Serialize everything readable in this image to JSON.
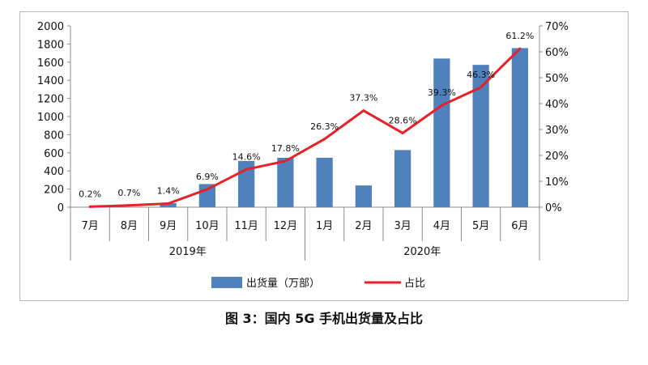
{
  "chart_data": {
    "type": "bar",
    "categories": [
      "7月",
      "8月",
      "9月",
      "10月",
      "11月",
      "12月",
      "1月",
      "2月",
      "3月",
      "4月",
      "5月",
      "6月"
    ],
    "groups": [
      {
        "label": "2019年",
        "start": 0,
        "end": 5
      },
      {
        "label": "2020年",
        "start": 6,
        "end": 11
      }
    ],
    "series": [
      {
        "name": "出货量（万部）",
        "type": "bar",
        "axis": "left",
        "color": "#4f81bd",
        "values": [
          0,
          0,
          45,
          255,
          510,
          545,
          545,
          240,
          630,
          1640,
          1570,
          1755
        ]
      },
      {
        "name": "占比",
        "type": "line",
        "axis": "right",
        "color": "#e8202a",
        "values": [
          0.2,
          0.7,
          1.4,
          6.9,
          14.6,
          17.8,
          26.3,
          37.3,
          28.6,
          39.3,
          46.3,
          61.2
        ],
        "labels": [
          "0.2%",
          "0.7%",
          "1.4%",
          "6.9%",
          "14.6%",
          "17.8%",
          "26.3%",
          "37.3%",
          "28.6%",
          "39.3%",
          "46.3%",
          "61.2%"
        ]
      }
    ],
    "y_left": {
      "min": 0,
      "max": 2000,
      "step": 200,
      "ticks": [
        "0",
        "200",
        "400",
        "600",
        "800",
        "1000",
        "1200",
        "1400",
        "1600",
        "1800",
        "2000"
      ]
    },
    "y_right": {
      "min": 0,
      "max": 70,
      "step": 10,
      "ticks": [
        "0%",
        "10%",
        "20%",
        "30%",
        "40%",
        "50%",
        "60%",
        "70%"
      ]
    },
    "legend": {
      "position": "bottom"
    },
    "grid": false
  },
  "caption": "图 3：国内 5G 手机出货量及占比"
}
